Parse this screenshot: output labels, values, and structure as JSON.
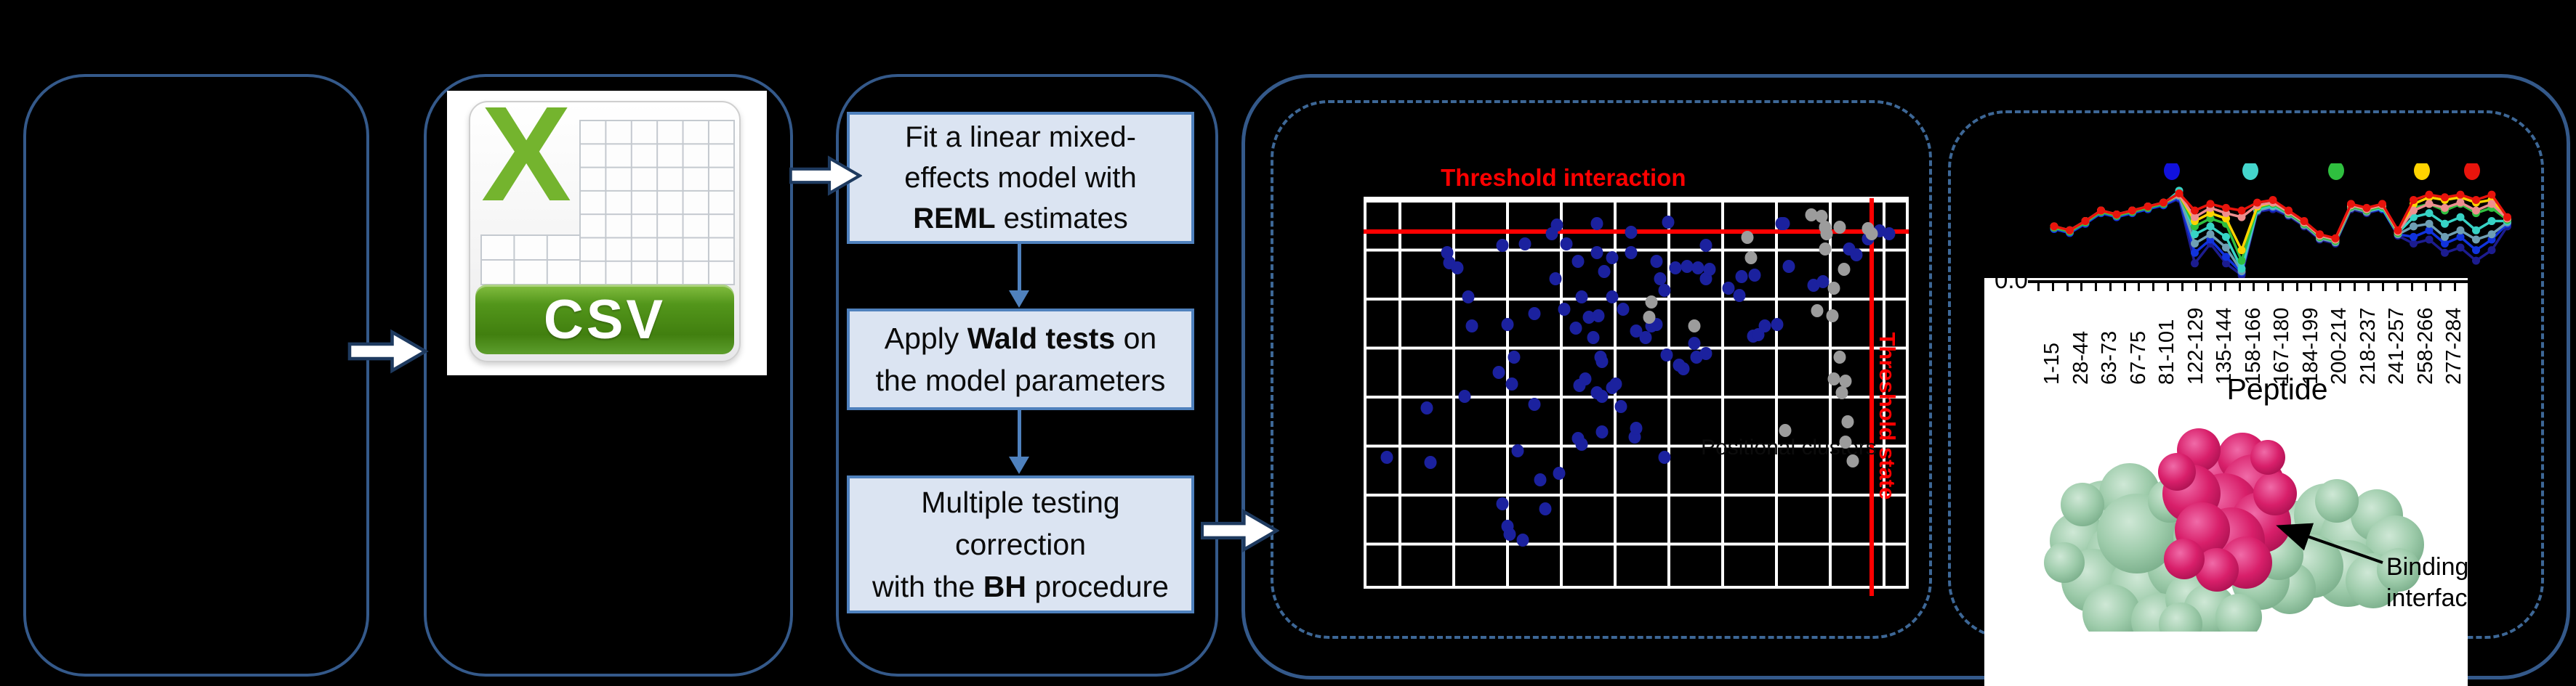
{
  "figure": {
    "background": "#000000",
    "panel_border_color": "#34598a",
    "dashed_border_color": "#3d6796"
  },
  "csv_icon": {
    "label": "CSV",
    "x_glyph": "X",
    "x_color": "#74b42e",
    "banner_green": "#53961b"
  },
  "pipeline": {
    "box_fill": "#dbe4f2",
    "box_border": "#4f81bd",
    "steps": [
      {
        "lines": [
          [
            {
              "t": "Fit a linear mixed-"
            }
          ],
          [
            {
              "t": "effects model with"
            }
          ],
          [
            {
              "t": "REML",
              "b": true
            },
            {
              "t": " estimates"
            }
          ]
        ]
      },
      {
        "lines": [
          [
            {
              "t": "Apply "
            },
            {
              "t": "Wald tests",
              "b": true
            },
            {
              "t": " on"
            }
          ],
          [
            {
              "t": "the model parameters"
            }
          ]
        ]
      },
      {
        "lines": [
          [
            {
              "t": "Multiple testing"
            }
          ],
          [
            {
              "t": "correction"
            }
          ],
          [
            {
              "t": "with the "
            },
            {
              "t": "BH",
              "b": true
            },
            {
              "t": " procedure"
            }
          ]
        ]
      }
    ]
  },
  "protein": {
    "annotation": "Binding interface",
    "surface_green": "#9dcbaa",
    "surface_magenta": "#d81f6a"
  },
  "chart_data": [
    {
      "type": "scatter",
      "title": "Threshold interaction",
      "title_color": "#ff0000",
      "vline_label": "Threshold state",
      "faint_label": "Positional clusters",
      "hline_y_pct": 7.8,
      "vline_x_pct": 93.2,
      "grid": {
        "line_color": "#ffffff",
        "col_spacing_px": 74,
        "row_spacing_px": 67.5
      },
      "blue_color": "#1b219e",
      "gray_color": "#9c9c9c",
      "blue_points": [
        [
          15.0,
          13.7
        ],
        [
          15.4,
          16.4
        ],
        [
          16.8,
          17.7
        ],
        [
          18.9,
          25.2
        ],
        [
          25.2,
          11.9
        ],
        [
          29.4,
          11.5
        ],
        [
          34.3,
          8.8
        ],
        [
          35.3,
          6.6
        ],
        [
          35.0,
          20.4
        ],
        [
          37.1,
          11.5
        ],
        [
          39.2,
          15.9
        ],
        [
          42.7,
          6.2
        ],
        [
          42.7,
          13.7
        ],
        [
          44.1,
          18.6
        ],
        [
          45.5,
          15.0
        ],
        [
          49.0,
          8.4
        ],
        [
          49.0,
          13.7
        ],
        [
          53.8,
          15.9
        ],
        [
          54.5,
          20.4
        ],
        [
          55.2,
          23.5
        ],
        [
          57.3,
          17.7
        ],
        [
          59.4,
          17.3
        ],
        [
          61.5,
          17.7
        ],
        [
          62.9,
          20.4
        ],
        [
          63.6,
          18.1
        ],
        [
          67.1,
          23.0
        ],
        [
          69.2,
          24.8
        ],
        [
          69.6,
          19.9
        ],
        [
          72.0,
          19.5
        ],
        [
          76.9,
          6.2
        ],
        [
          78.3,
          17.3
        ],
        [
          82.9,
          22.1
        ],
        [
          84.6,
          21.2
        ],
        [
          89.5,
          12.8
        ],
        [
          90.9,
          14.2
        ],
        [
          55.9,
          5.8
        ],
        [
          62.9,
          11.9
        ],
        [
          77.3,
          6.2
        ],
        [
          95.1,
          8.0
        ],
        [
          96.9,
          8.8
        ],
        [
          93.0,
          10.2
        ],
        [
          19.6,
          32.7
        ],
        [
          26.2,
          32.3
        ],
        [
          27.3,
          40.7
        ],
        [
          31.1,
          29.6
        ],
        [
          36.7,
          28.3
        ],
        [
          38.8,
          33.2
        ],
        [
          39.9,
          25.2
        ],
        [
          41.3,
          30.5
        ],
        [
          42.0,
          35.8
        ],
        [
          43.0,
          30.1
        ],
        [
          43.4,
          40.7
        ],
        [
          43.7,
          42.0
        ],
        [
          45.5,
          25.2
        ],
        [
          47.6,
          28.3
        ],
        [
          50.0,
          34.1
        ],
        [
          51.7,
          35.8
        ],
        [
          52.8,
          32.7
        ],
        [
          53.8,
          32.3
        ],
        [
          55.6,
          40.3
        ],
        [
          58.0,
          42.9
        ],
        [
          58.7,
          43.8
        ],
        [
          60.8,
          37.2
        ],
        [
          61.2,
          40.7
        ],
        [
          62.9,
          39.8
        ],
        [
          71.7,
          35.4
        ],
        [
          72.7,
          35.0
        ],
        [
          73.8,
          32.7
        ],
        [
          76.2,
          32.3
        ],
        [
          11.2,
          54.0
        ],
        [
          18.2,
          50.9
        ],
        [
          24.5,
          44.7
        ],
        [
          26.9,
          47.8
        ],
        [
          28.0,
          65.0
        ],
        [
          31.1,
          53.1
        ],
        [
          39.5,
          48.2
        ],
        [
          40.6,
          46.5
        ],
        [
          42.7,
          50.0
        ],
        [
          43.7,
          50.9
        ],
        [
          45.5,
          48.7
        ],
        [
          46.2,
          47.8
        ],
        [
          47.2,
          53.5
        ],
        [
          49.7,
          61.5
        ],
        [
          50.0,
          59.3
        ],
        [
          55.2,
          66.8
        ],
        [
          3.8,
          66.8
        ],
        [
          11.9,
          68.1
        ],
        [
          25.2,
          78.8
        ],
        [
          26.2,
          84.5
        ],
        [
          26.6,
          86.7
        ],
        [
          29.0,
          88.1
        ],
        [
          32.2,
          72.6
        ],
        [
          33.2,
          80.1
        ],
        [
          35.7,
          70.8
        ],
        [
          39.2,
          61.9
        ],
        [
          39.9,
          63.3
        ],
        [
          43.7,
          60.2
        ]
      ],
      "gray_points": [
        [
          82.5,
          4.0
        ],
        [
          84.3,
          4.4
        ],
        [
          85.0,
          7.1
        ],
        [
          85.3,
          8.8
        ],
        [
          85.0,
          12.8
        ],
        [
          87.8,
          7.1
        ],
        [
          88.5,
          18.1
        ],
        [
          70.6,
          9.7
        ],
        [
          71.3,
          15.0
        ],
        [
          52.8,
          26.5
        ],
        [
          52.4,
          30.5
        ],
        [
          60.8,
          32.7
        ],
        [
          86.7,
          23.0
        ],
        [
          86.4,
          30.1
        ],
        [
          87.8,
          40.7
        ],
        [
          86.7,
          46.5
        ],
        [
          88.1,
          50.0
        ],
        [
          88.8,
          46.9
        ],
        [
          89.2,
          57.5
        ],
        [
          77.6,
          59.7
        ],
        [
          88.8,
          62.8
        ],
        [
          90.2,
          67.7
        ],
        [
          93.0,
          7.5
        ],
        [
          93.7,
          8.8
        ],
        [
          83.6,
          28.8
        ]
      ]
    },
    {
      "type": "line",
      "xlabel": "Peptide",
      "first_ytick": "0.0",
      "categories": [
        "1-15",
        "28-44",
        "63-73",
        "67-75",
        "81-101",
        "122-129",
        "135-144",
        "158-166",
        "167-180",
        "184-199",
        "200-214",
        "218-237",
        "241-257",
        "258-266",
        "277-284"
      ],
      "n_points": 30,
      "legend_dot_colors": [
        "#1111dd",
        "#44d5cc",
        "#2fbf3f",
        "#ffd400",
        "#e8140c"
      ],
      "series": [
        {
          "name": "navy",
          "color": "#1c1c8f",
          "values": [
            0.36,
            0.33,
            0.4,
            0.48,
            0.45,
            0.48,
            0.51,
            0.54,
            0.59,
            0.1,
            0.25,
            0.1,
            0.01,
            0.49,
            0.51,
            0.46,
            0.38,
            0.28,
            0.25,
            0.51,
            0.48,
            0.51,
            0.31,
            0.25,
            0.28,
            0.18,
            0.22,
            0.12,
            0.2,
            0.38
          ]
        },
        {
          "name": "blue",
          "color": "#1133dd",
          "values": [
            0.36,
            0.33,
            0.4,
            0.48,
            0.45,
            0.48,
            0.51,
            0.54,
            0.6,
            0.18,
            0.28,
            0.15,
            0.03,
            0.5,
            0.52,
            0.47,
            0.39,
            0.29,
            0.26,
            0.52,
            0.49,
            0.51,
            0.32,
            0.3,
            0.35,
            0.25,
            0.3,
            0.2,
            0.28,
            0.4
          ]
        },
        {
          "name": "slate",
          "color": "#6e9fb4",
          "values": [
            0.37,
            0.34,
            0.41,
            0.49,
            0.46,
            0.49,
            0.52,
            0.55,
            0.61,
            0.25,
            0.32,
            0.22,
            0.04,
            0.5,
            0.53,
            0.47,
            0.39,
            0.29,
            0.26,
            0.52,
            0.49,
            0.52,
            0.32,
            0.38,
            0.4,
            0.3,
            0.35,
            0.28,
            0.32,
            0.41
          ]
        },
        {
          "name": "turquoise",
          "color": "#37d3c5",
          "values": [
            0.37,
            0.34,
            0.41,
            0.49,
            0.46,
            0.49,
            0.52,
            0.55,
            0.65,
            0.32,
            0.38,
            0.3,
            0.06,
            0.51,
            0.54,
            0.48,
            0.4,
            0.3,
            0.27,
            0.53,
            0.5,
            0.52,
            0.33,
            0.45,
            0.48,
            0.4,
            0.45,
            0.35,
            0.42,
            0.42
          ]
        },
        {
          "name": "green",
          "color": "#2fbf3f",
          "values": [
            0.37,
            0.34,
            0.41,
            0.49,
            0.46,
            0.49,
            0.52,
            0.55,
            0.62,
            0.38,
            0.44,
            0.4,
            0.12,
            0.52,
            0.55,
            0.48,
            0.4,
            0.3,
            0.27,
            0.53,
            0.5,
            0.53,
            0.33,
            0.52,
            0.55,
            0.5,
            0.55,
            0.48,
            0.52,
            0.43
          ]
        },
        {
          "name": "yellow",
          "color": "#ffd400",
          "values": [
            0.38,
            0.35,
            0.42,
            0.5,
            0.47,
            0.5,
            0.53,
            0.56,
            0.62,
            0.42,
            0.48,
            0.44,
            0.2,
            0.53,
            0.56,
            0.49,
            0.41,
            0.31,
            0.28,
            0.54,
            0.51,
            0.54,
            0.34,
            0.55,
            0.6,
            0.58,
            0.6,
            0.56,
            0.58,
            0.44
          ]
        },
        {
          "name": "salmon",
          "color": "#ef8f8f",
          "values": [
            0.38,
            0.35,
            0.42,
            0.5,
            0.47,
            0.5,
            0.53,
            0.56,
            0.62,
            0.45,
            0.52,
            0.48,
            0.45,
            0.54,
            0.56,
            0.49,
            0.41,
            0.31,
            0.28,
            0.54,
            0.51,
            0.54,
            0.34,
            0.5,
            0.55,
            0.52,
            0.56,
            0.5,
            0.55,
            0.44
          ]
        },
        {
          "name": "red",
          "color": "#e8140c",
          "values": [
            0.38,
            0.35,
            0.42,
            0.5,
            0.47,
            0.5,
            0.53,
            0.56,
            0.63,
            0.5,
            0.55,
            0.52,
            0.5,
            0.56,
            0.58,
            0.5,
            0.42,
            0.32,
            0.29,
            0.55,
            0.52,
            0.55,
            0.35,
            0.58,
            0.62,
            0.6,
            0.62,
            0.58,
            0.62,
            0.45
          ]
        }
      ]
    }
  ]
}
